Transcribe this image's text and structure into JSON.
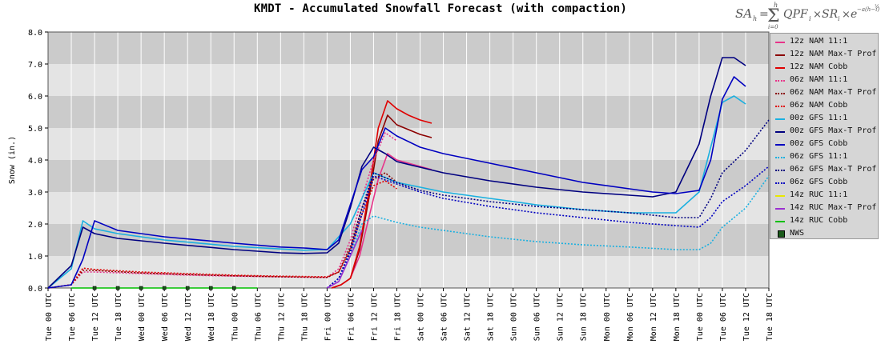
{
  "title": "KMDT - Accumulated Snowfall Forecast (with compaction)",
  "formula": {
    "lhs": "SA",
    "lhs_sub": "h",
    "sum_top": "h",
    "sum_bottom": "i=0",
    "body": "QPF",
    "body_sub": "i",
    "times": "×",
    "sr": "SR",
    "sr_sub": "i",
    "exp_base": "e",
    "exp": "−a(h−i)",
    "exp_frac": "½"
  },
  "colors": {
    "band_dark": "#cbcbcb",
    "band_light": "#e4e4e4",
    "grid": "#ffffff"
  },
  "chart_data": {
    "type": "line",
    "title": "KMDT - Accumulated Snowfall Forecast (with compaction)",
    "xlabel": "",
    "ylabel": "Snow (in.)",
    "ylim": [
      0,
      8
    ],
    "yticks": [
      "0.0",
      "1.0",
      "2.0",
      "3.0",
      "4.0",
      "5.0",
      "6.0",
      "7.0",
      "8.0"
    ],
    "xlim": [
      0,
      31
    ],
    "xticks": [
      "Tue 00 UTC",
      "Tue 06 UTC",
      "Tue 12 UTC",
      "Tue 18 UTC",
      "Wed 00 UTC",
      "Wed 06 UTC",
      "Wed 12 UTC",
      "Wed 18 UTC",
      "Thu 00 UTC",
      "Thu 06 UTC",
      "Thu 12 UTC",
      "Thu 18 UTC",
      "Fri 00 UTC",
      "Fri 06 UTC",
      "Fri 12 UTC",
      "Fri 18 UTC",
      "Sat 00 UTC",
      "Sat 06 UTC",
      "Sat 12 UTC",
      "Sat 18 UTC",
      "Sun 00 UTC",
      "Sun 06 UTC",
      "Sun 12 UTC",
      "Sun 18 UTC",
      "Mon 00 UTC",
      "Mon 06 UTC",
      "Mon 12 UTC",
      "Mon 18 UTC",
      "Tue 00 UTC",
      "Tue 06 UTC",
      "Tue 12 UTC",
      "Tue 18 UTC"
    ],
    "grid": true,
    "legend_position": "right",
    "series": [
      {
        "name": "12z NAM 11:1",
        "color": "#e8348a",
        "dash": false,
        "x": [
          12.2,
          12.6,
          13.0,
          13.4,
          13.8,
          14.2,
          14.6,
          15.0,
          15.5,
          16.0,
          16.5
        ],
        "y": [
          0.0,
          0.1,
          0.3,
          1.0,
          2.2,
          3.4,
          4.2,
          4.0,
          3.9,
          3.8,
          3.7
        ]
      },
      {
        "name": "12z NAM Max-T Prof",
        "color": "#8b0000",
        "dash": false,
        "x": [
          12.2,
          12.6,
          13.0,
          13.4,
          13.8,
          14.2,
          14.6,
          15.0,
          15.5,
          16.0,
          16.5
        ],
        "y": [
          0.0,
          0.1,
          0.3,
          1.2,
          2.8,
          4.6,
          5.4,
          5.1,
          4.95,
          4.8,
          4.7
        ]
      },
      {
        "name": "12z NAM Cobb",
        "color": "#e00000",
        "dash": false,
        "x": [
          12.2,
          12.6,
          13.0,
          13.4,
          13.8,
          14.2,
          14.6,
          15.0,
          15.5,
          16.0,
          16.5
        ],
        "y": [
          0.0,
          0.1,
          0.3,
          1.3,
          3.0,
          5.0,
          5.85,
          5.6,
          5.4,
          5.25,
          5.15
        ]
      },
      {
        "name": "06z NAM 11:1",
        "color": "#e8348a",
        "dash": true,
        "x": [
          0.0,
          0.5,
          1.0,
          1.5,
          2.0,
          4.0,
          6.0,
          8.0,
          10.0,
          12.0,
          12.5,
          13.0,
          13.5,
          14.0,
          14.5,
          15.0
        ],
        "y": [
          0.0,
          0.05,
          0.1,
          0.5,
          0.5,
          0.45,
          0.4,
          0.37,
          0.35,
          0.33,
          0.6,
          1.5,
          2.8,
          4.0,
          4.85,
          4.6
        ]
      },
      {
        "name": "06z NAM Max-T Prof",
        "color": "#8b0000",
        "dash": true,
        "x": [
          0.0,
          0.5,
          1.0,
          1.5,
          2.0,
          4.0,
          6.0,
          8.0,
          10.0,
          12.0,
          12.5,
          13.0,
          13.5,
          14.0,
          14.5,
          15.0
        ],
        "y": [
          0.0,
          0.05,
          0.1,
          0.55,
          0.55,
          0.47,
          0.42,
          0.38,
          0.35,
          0.33,
          0.5,
          1.3,
          2.5,
          3.4,
          3.6,
          3.3
        ]
      },
      {
        "name": "06z NAM Cobb",
        "color": "#e00000",
        "dash": true,
        "x": [
          0.0,
          0.5,
          1.0,
          1.5,
          2.0,
          4.0,
          6.0,
          8.0,
          10.0,
          12.0,
          12.5,
          13.0,
          13.5,
          14.0,
          14.5,
          15.0
        ],
        "y": [
          0.0,
          0.05,
          0.1,
          0.62,
          0.58,
          0.5,
          0.45,
          0.4,
          0.37,
          0.35,
          0.5,
          1.2,
          2.3,
          3.2,
          3.35,
          3.1
        ]
      },
      {
        "name": "00z GFS 11:1",
        "color": "#1ab0e0",
        "dash": false,
        "x": [
          0.0,
          1.0,
          1.5,
          2.0,
          3.0,
          5.0,
          8.0,
          10.0,
          11.0,
          12.0,
          13.0,
          14.0,
          15.0,
          17.0,
          19.0,
          21.0,
          23.0,
          25.0,
          27.0,
          28.0,
          29.0,
          29.5,
          30.0
        ],
        "y": [
          0.0,
          0.6,
          2.1,
          1.85,
          1.7,
          1.5,
          1.3,
          1.22,
          1.18,
          1.2,
          2.0,
          3.6,
          3.3,
          3.0,
          2.8,
          2.6,
          2.45,
          2.35,
          2.35,
          3.0,
          5.8,
          6.0,
          5.75
        ]
      },
      {
        "name": "00z GFS Max-T Prof",
        "color": "#000080",
        "dash": false,
        "x": [
          0.0,
          1.0,
          1.5,
          2.0,
          3.0,
          5.0,
          8.0,
          9.0,
          10.0,
          11.0,
          12.0,
          12.5,
          13.0,
          13.5,
          14.0,
          14.5,
          15.0,
          17.0,
          19.0,
          21.0,
          23.0,
          25.0,
          26.0,
          27.0,
          28.0,
          28.5,
          29.0,
          29.5,
          30.0
        ],
        "y": [
          0.0,
          0.7,
          1.9,
          1.7,
          1.55,
          1.4,
          1.2,
          1.15,
          1.1,
          1.08,
          1.1,
          1.4,
          2.5,
          3.8,
          4.4,
          4.2,
          3.95,
          3.6,
          3.35,
          3.15,
          3.0,
          2.9,
          2.85,
          3.0,
          4.5,
          6.0,
          7.2,
          7.2,
          6.95
        ]
      },
      {
        "name": "00z GFS Cobb",
        "color": "#0000c0",
        "dash": false,
        "x": [
          0.0,
          1.0,
          1.5,
          2.0,
          3.0,
          5.0,
          8.0,
          10.0,
          11.0,
          12.0,
          12.5,
          13.0,
          13.5,
          14.0,
          14.5,
          15.0,
          16.0,
          17.0,
          19.0,
          21.0,
          23.0,
          25.0,
          26.0,
          27.0,
          28.0,
          28.5,
          29.0,
          29.5,
          30.0
        ],
        "y": [
          0.0,
          0.1,
          0.9,
          2.1,
          1.8,
          1.6,
          1.4,
          1.28,
          1.25,
          1.2,
          1.5,
          2.6,
          3.7,
          4.1,
          5.0,
          4.75,
          4.4,
          4.2,
          3.9,
          3.6,
          3.3,
          3.1,
          3.0,
          2.95,
          3.05,
          4.0,
          5.9,
          6.6,
          6.3
        ]
      },
      {
        "name": "06z GFS 11:1",
        "color": "#1ab0e0",
        "dash": true,
        "x": [
          12.0,
          12.5,
          13.0,
          13.5,
          14.0,
          15.0,
          16.0,
          17.0,
          19.0,
          21.0,
          23.0,
          25.0,
          27.0,
          28.0,
          28.5,
          29.0,
          30.0,
          31.0
        ],
        "y": [
          0.0,
          0.3,
          1.0,
          2.0,
          2.25,
          2.05,
          1.9,
          1.8,
          1.6,
          1.45,
          1.35,
          1.28,
          1.2,
          1.2,
          1.4,
          1.9,
          2.5,
          3.5
        ]
      },
      {
        "name": "06z GFS Max-T Prof",
        "color": "#000080",
        "dash": true,
        "x": [
          12.0,
          12.5,
          13.0,
          13.5,
          14.0,
          15.0,
          16.0,
          17.0,
          19.0,
          21.0,
          23.0,
          25.0,
          27.0,
          28.0,
          28.5,
          29.0,
          30.0,
          31.0
        ],
        "y": [
          0.0,
          0.3,
          1.2,
          2.5,
          3.6,
          3.3,
          3.05,
          2.9,
          2.7,
          2.55,
          2.45,
          2.35,
          2.2,
          2.2,
          2.8,
          3.6,
          4.3,
          5.25
        ]
      },
      {
        "name": "06z GFS Cobb",
        "color": "#0000c0",
        "dash": true,
        "x": [
          12.0,
          12.5,
          13.0,
          13.5,
          14.0,
          15.0,
          16.0,
          17.0,
          19.0,
          21.0,
          23.0,
          25.0,
          27.0,
          28.0,
          28.5,
          29.0,
          30.0,
          31.0
        ],
        "y": [
          0.0,
          0.3,
          1.1,
          2.3,
          3.5,
          3.25,
          3.0,
          2.8,
          2.55,
          2.35,
          2.2,
          2.05,
          1.95,
          1.9,
          2.2,
          2.7,
          3.2,
          3.8
        ]
      },
      {
        "name": "14z RUC 11:1",
        "color": "#e8e800",
        "dash": false,
        "x": [],
        "y": []
      },
      {
        "name": "14z RUC Max-T Prof",
        "color": "#9a30d0",
        "dash": false,
        "x": [
          12.0,
          12.5,
          13.0,
          13.5
        ],
        "y": [
          0.0,
          0.2,
          1.0,
          1.8
        ]
      },
      {
        "name": "14z RUC Cobb",
        "color": "#00c000",
        "dash": false,
        "x": [
          1.0,
          2.0,
          3.0,
          4.0,
          5.0,
          6.0,
          7.0,
          8.0,
          9.0
        ],
        "y": [
          0.0,
          0.0,
          0.0,
          0.0,
          0.0,
          0.0,
          0.0,
          0.0,
          0.0
        ]
      },
      {
        "name": "NWS",
        "color": "#1a5a1a",
        "dash": false,
        "marker": true,
        "x": [
          2.0,
          3.0,
          4.0,
          5.0,
          6.0,
          7.0,
          8.0
        ],
        "y": [
          0.0,
          0.0,
          0.0,
          0.0,
          0.0,
          0.0,
          0.0
        ]
      }
    ]
  }
}
